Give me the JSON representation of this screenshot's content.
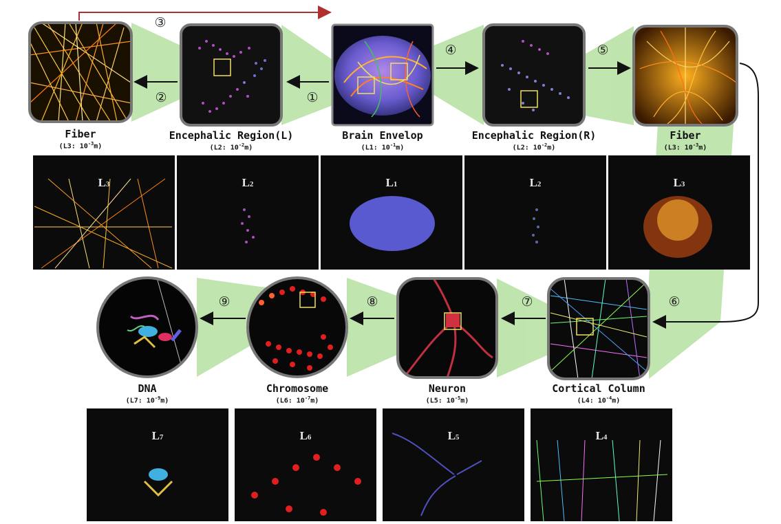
{
  "steps": [
    "①",
    "②",
    "③",
    "④",
    "⑤",
    "⑥",
    "⑦",
    "⑧",
    "⑨"
  ],
  "top_labels": [
    {
      "name": "Fiber",
      "scale_prefix": "(L3: 10",
      "exp": "-3",
      "unit": "m)"
    },
    {
      "name": "Encephalic Region(L)",
      "scale_prefix": "(L2: 10",
      "exp": "-2",
      "unit": "m)"
    },
    {
      "name": "Brain Envelop",
      "scale_prefix": "(L1: 10",
      "exp": "-1",
      "unit": "m)"
    },
    {
      "name": "Encephalic Region(R)",
      "scale_prefix": "(L2: 10",
      "exp": "-2",
      "unit": "m)"
    },
    {
      "name": "Fiber",
      "scale_prefix": "(L3: 10",
      "exp": "-3",
      "unit": "m)"
    }
  ],
  "bottom_labels": [
    {
      "name": "DNA",
      "scale_prefix": "(L7: 10",
      "exp": "-9",
      "unit": "m)"
    },
    {
      "name": "Chromosome",
      "scale_prefix": "(L6: 10",
      "exp": "-7",
      "unit": "m)"
    },
    {
      "name": "Neuron",
      "scale_prefix": "(L5: 10",
      "exp": "-5",
      "unit": "m)"
    },
    {
      "name": "Cortical Column",
      "scale_prefix": "(L4: 10",
      "exp": "-4",
      "unit": "m)"
    }
  ],
  "screenshot_levels_top": [
    {
      "letter": "L",
      "sub": "3"
    },
    {
      "letter": "L",
      "sub": "2"
    },
    {
      "letter": "L",
      "sub": "1"
    },
    {
      "letter": "L",
      "sub": "2"
    },
    {
      "letter": "L",
      "sub": "3"
    }
  ],
  "screenshot_levels_bottom": [
    {
      "letter": "L",
      "sub": "7"
    },
    {
      "letter": "L",
      "sub": "6"
    },
    {
      "letter": "L",
      "sub": "5"
    },
    {
      "letter": "L",
      "sub": "4"
    }
  ],
  "colors": {
    "zoom_wedge": "#b5e0a0",
    "arrow": "#111111",
    "back_arrow": "#b03030",
    "highlight_box": "#f0e060"
  }
}
